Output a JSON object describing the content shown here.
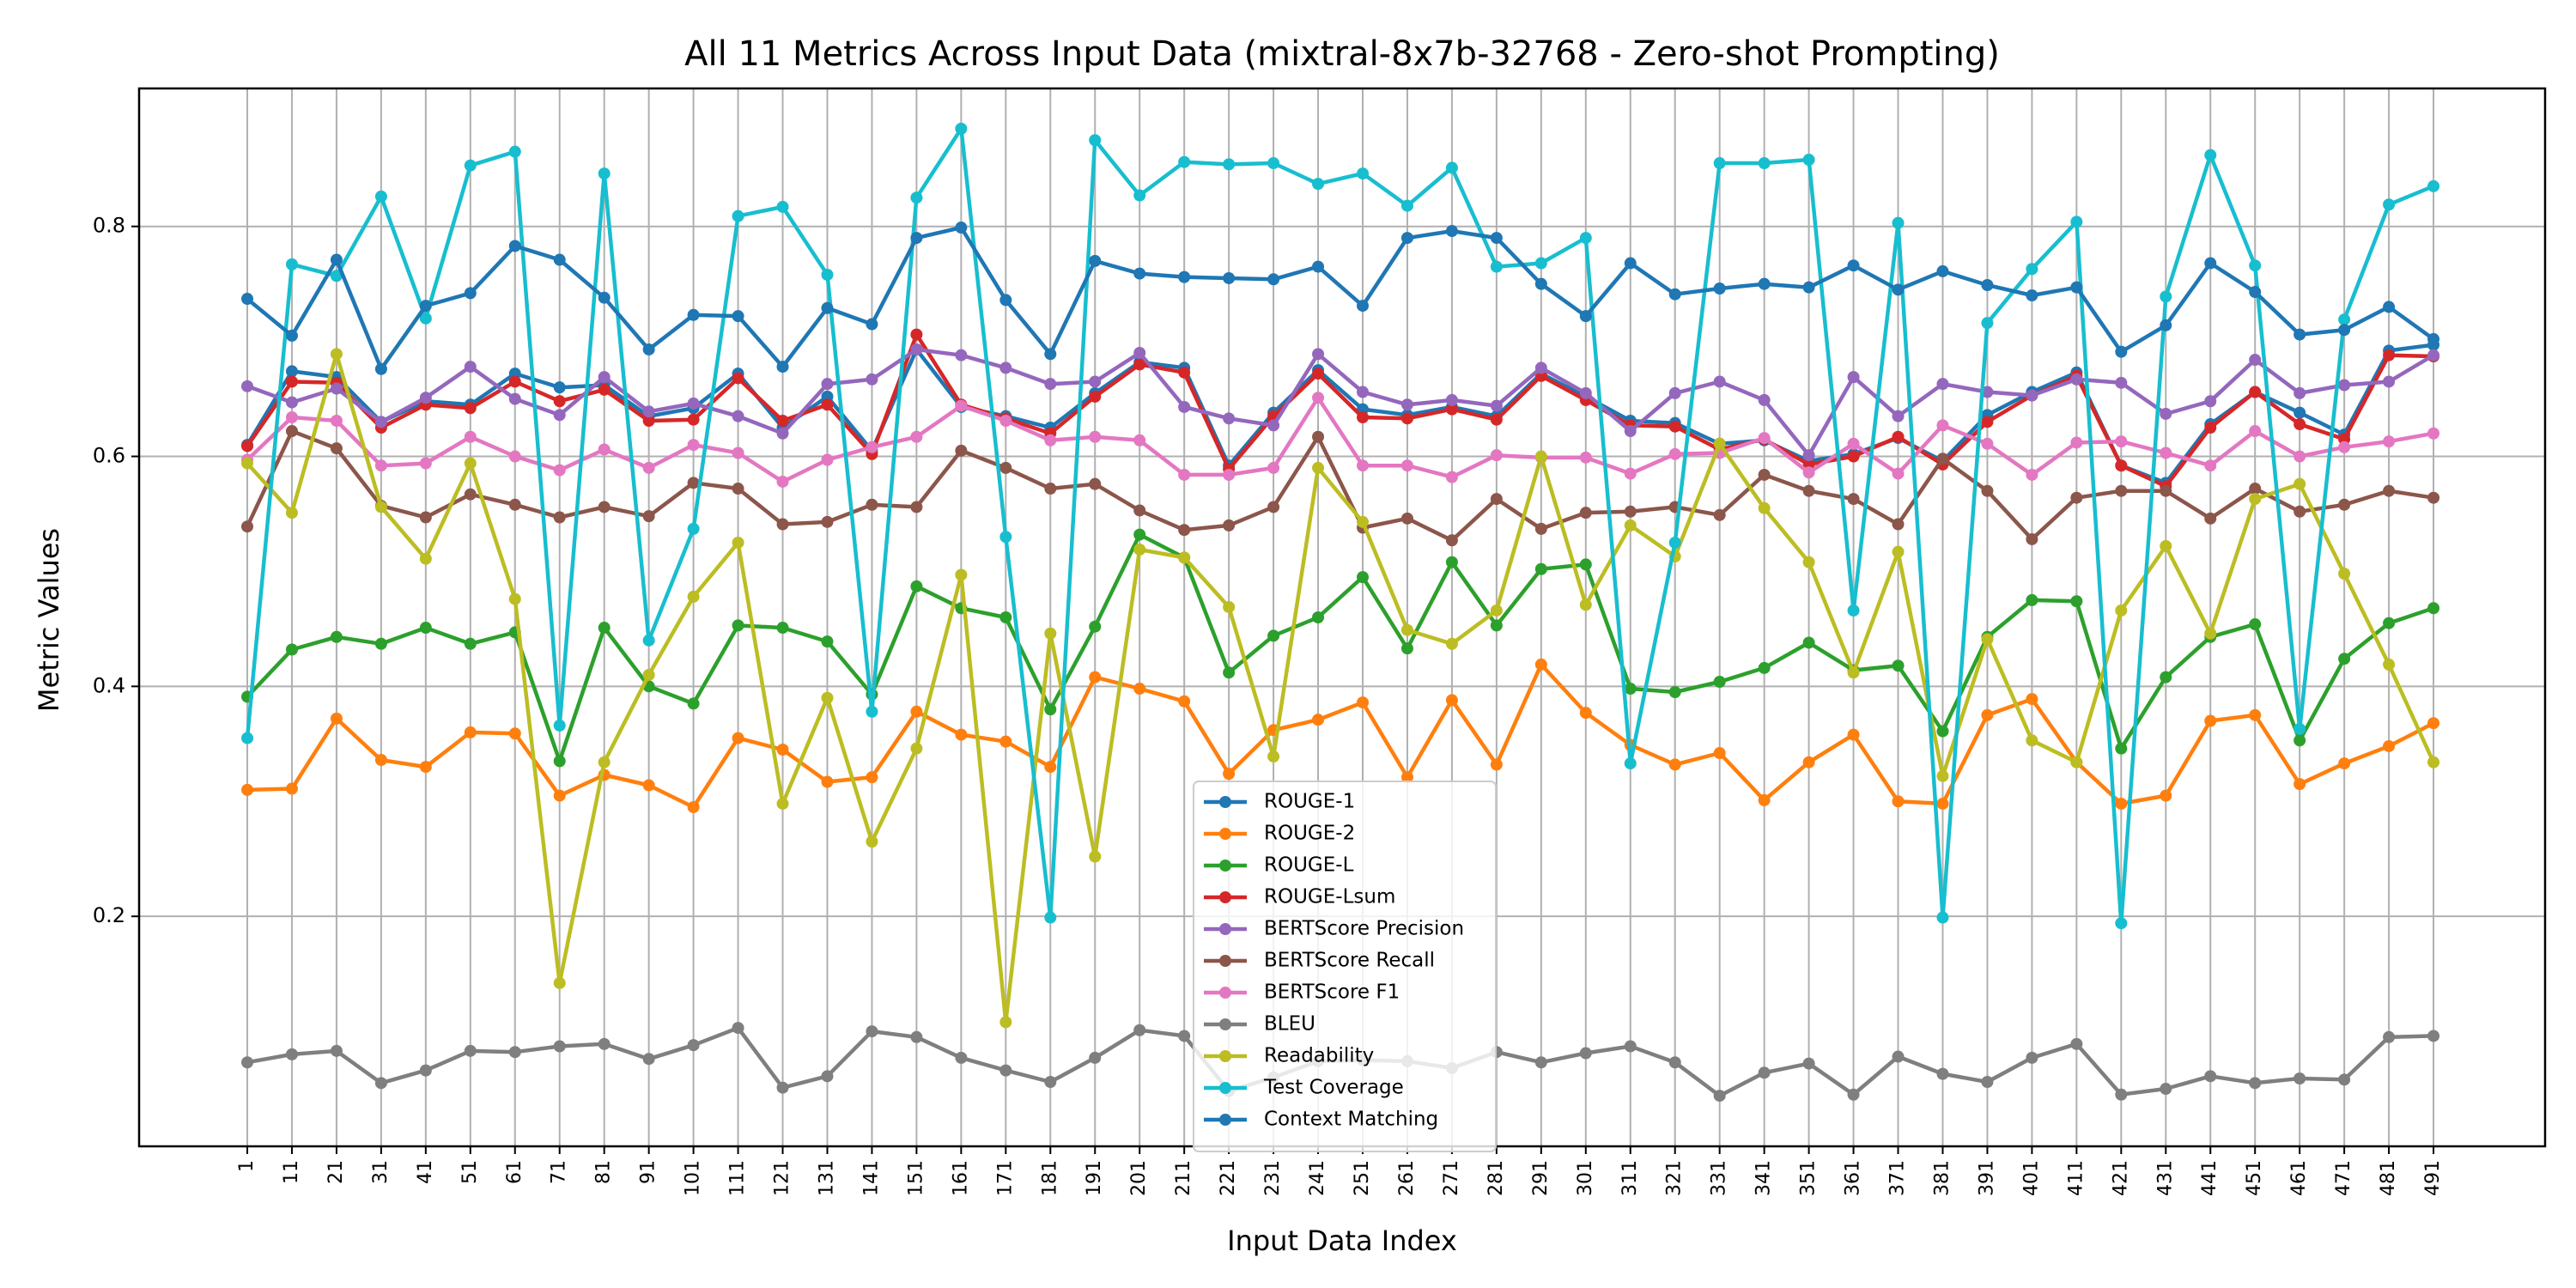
{
  "chart_data": {
    "type": "line",
    "title": "All 11 Metrics Across Input Data (mixtral-8x7b-32768 - Zero-shot Prompting)",
    "xlabel": "Input Data Index",
    "ylabel": "Metric Values",
    "ylim": [
      0.0,
      0.92
    ],
    "yticks": [
      0.2,
      0.4,
      0.6,
      0.8
    ],
    "grid": true,
    "legend_position": "bottom-center",
    "x": [
      1,
      11,
      21,
      31,
      41,
      51,
      61,
      71,
      81,
      91,
      101,
      111,
      121,
      131,
      141,
      151,
      161,
      171,
      181,
      191,
      201,
      211,
      221,
      231,
      241,
      251,
      261,
      271,
      281,
      291,
      301,
      311,
      321,
      331,
      341,
      351,
      361,
      371,
      381,
      391,
      401,
      411,
      421,
      431,
      441,
      451,
      461,
      471,
      481,
      491
    ],
    "series": [
      {
        "name": "ROUGE-1",
        "color": "#1f77b4",
        "values": [
          0.61,
          0.674,
          0.669,
          0.63,
          0.648,
          0.645,
          0.672,
          0.66,
          0.662,
          0.635,
          0.642,
          0.672,
          0.625,
          0.652,
          0.605,
          0.693,
          0.643,
          0.635,
          0.625,
          0.655,
          0.682,
          0.677,
          0.592,
          0.638,
          0.675,
          0.641,
          0.636,
          0.643,
          0.635,
          0.672,
          0.652,
          0.631,
          0.629,
          0.611,
          0.614,
          0.596,
          0.602,
          0.616,
          0.596,
          0.636,
          0.656,
          0.673,
          0.592,
          0.577,
          0.628,
          0.656,
          0.638,
          0.619,
          0.692,
          0.697
        ]
      },
      {
        "name": "ROUGE-2",
        "color": "#ff7f0e",
        "values": [
          0.31,
          0.311,
          0.372,
          0.336,
          0.33,
          0.36,
          0.359,
          0.305,
          0.323,
          0.314,
          0.295,
          0.355,
          0.345,
          0.317,
          0.321,
          0.378,
          0.358,
          0.352,
          0.33,
          0.408,
          0.398,
          0.387,
          0.324,
          0.362,
          0.371,
          0.386,
          0.321,
          0.388,
          0.332,
          0.419,
          0.377,
          0.349,
          0.332,
          0.342,
          0.301,
          0.334,
          0.358,
          0.3,
          0.298,
          0.375,
          0.389,
          0.334,
          0.298,
          0.305,
          0.37,
          0.375,
          0.315,
          0.333,
          0.348,
          0.368
        ]
      },
      {
        "name": "ROUGE-L",
        "color": "#2ca02c",
        "values": [
          0.391,
          0.432,
          0.443,
          0.437,
          0.451,
          0.437,
          0.447,
          0.335,
          0.451,
          0.4,
          0.385,
          0.453,
          0.451,
          0.439,
          0.393,
          0.487,
          0.468,
          0.46,
          0.38,
          0.452,
          0.532,
          0.512,
          0.412,
          0.444,
          0.46,
          0.495,
          0.433,
          0.508,
          0.453,
          0.502,
          0.506,
          0.398,
          0.395,
          0.404,
          0.416,
          0.438,
          0.414,
          0.418,
          0.361,
          0.443,
          0.475,
          0.474,
          0.346,
          0.408,
          0.443,
          0.454,
          0.353,
          0.424,
          0.455,
          0.468
        ]
      },
      {
        "name": "ROUGE-Lsum",
        "color": "#d62728",
        "values": [
          0.609,
          0.665,
          0.664,
          0.625,
          0.645,
          0.642,
          0.665,
          0.648,
          0.658,
          0.631,
          0.632,
          0.668,
          0.631,
          0.645,
          0.602,
          0.706,
          0.645,
          0.633,
          0.62,
          0.652,
          0.68,
          0.673,
          0.589,
          0.635,
          0.672,
          0.634,
          0.633,
          0.641,
          0.632,
          0.67,
          0.649,
          0.627,
          0.626,
          0.606,
          0.615,
          0.593,
          0.6,
          0.617,
          0.593,
          0.63,
          0.653,
          0.67,
          0.592,
          0.574,
          0.625,
          0.656,
          0.628,
          0.615,
          0.688,
          0.687
        ]
      },
      {
        "name": "BERTScore Precision",
        "color": "#9467bd",
        "values": [
          0.661,
          0.647,
          0.659,
          0.63,
          0.651,
          0.678,
          0.65,
          0.636,
          0.669,
          0.639,
          0.646,
          0.635,
          0.62,
          0.663,
          0.667,
          0.693,
          0.688,
          0.677,
          0.663,
          0.665,
          0.69,
          0.643,
          0.633,
          0.627,
          0.689,
          0.656,
          0.645,
          0.649,
          0.644,
          0.677,
          0.655,
          0.622,
          0.655,
          0.665,
          0.649,
          0.601,
          0.669,
          0.635,
          0.663,
          0.656,
          0.653,
          0.667,
          0.664,
          0.637,
          0.648,
          0.684,
          0.655,
          0.662,
          0.665,
          0.688
        ]
      },
      {
        "name": "BERTScore Recall",
        "color": "#8c564b",
        "values": [
          0.539,
          0.622,
          0.607,
          0.557,
          0.547,
          0.567,
          0.558,
          0.547,
          0.556,
          0.548,
          0.577,
          0.572,
          0.541,
          0.543,
          0.558,
          0.556,
          0.605,
          0.59,
          0.572,
          0.576,
          0.553,
          0.536,
          0.54,
          0.556,
          0.617,
          0.538,
          0.546,
          0.527,
          0.563,
          0.537,
          0.551,
          0.552,
          0.556,
          0.549,
          0.584,
          0.57,
          0.563,
          0.541,
          0.598,
          0.57,
          0.528,
          0.564,
          0.57,
          0.57,
          0.546,
          0.572,
          0.552,
          0.558,
          0.57,
          0.564
        ]
      },
      {
        "name": "BERTScore F1",
        "color": "#e377c2",
        "values": [
          0.597,
          0.634,
          0.631,
          0.592,
          0.594,
          0.617,
          0.6,
          0.588,
          0.606,
          0.59,
          0.61,
          0.603,
          0.578,
          0.597,
          0.608,
          0.617,
          0.644,
          0.631,
          0.614,
          0.617,
          0.614,
          0.584,
          0.584,
          0.59,
          0.651,
          0.592,
          0.592,
          0.582,
          0.601,
          0.599,
          0.599,
          0.585,
          0.602,
          0.603,
          0.616,
          0.586,
          0.611,
          0.585,
          0.627,
          0.611,
          0.584,
          0.612,
          0.613,
          0.603,
          0.592,
          0.622,
          0.6,
          0.608,
          0.613,
          0.62
        ]
      },
      {
        "name": "BLEU",
        "color": "#7f7f7f",
        "values": [
          0.073,
          0.08,
          0.083,
          0.055,
          0.066,
          0.083,
          0.082,
          0.087,
          0.089,
          0.076,
          0.088,
          0.103,
          0.051,
          0.061,
          0.1,
          0.095,
          0.077,
          0.066,
          0.056,
          0.077,
          0.101,
          0.096,
          0.048,
          0.06,
          0.074,
          0.075,
          0.074,
          0.068,
          0.082,
          0.073,
          0.081,
          0.087,
          0.073,
          0.044,
          0.064,
          0.072,
          0.045,
          0.078,
          0.063,
          0.056,
          0.077,
          0.089,
          0.045,
          0.05,
          0.061,
          0.055,
          0.059,
          0.058,
          0.095,
          0.096
        ]
      },
      {
        "name": "Readability",
        "color": "#bcbd22",
        "values": [
          0.594,
          0.551,
          0.689,
          0.556,
          0.511,
          0.594,
          0.476,
          0.142,
          0.334,
          0.41,
          0.478,
          0.525,
          0.298,
          0.39,
          0.265,
          0.346,
          0.497,
          0.108,
          0.446,
          0.252,
          0.519,
          0.512,
          0.469,
          0.339,
          0.59,
          0.543,
          0.449,
          0.437,
          0.466,
          0.6,
          0.471,
          0.54,
          0.513,
          0.611,
          0.555,
          0.508,
          0.412,
          0.517,
          0.322,
          0.441,
          0.353,
          0.334,
          0.466,
          0.522,
          0.446,
          0.563,
          0.576,
          0.498,
          0.419,
          0.334
        ]
      },
      {
        "name": "Test Coverage",
        "color": "#17becf",
        "values": [
          0.355,
          0.767,
          0.757,
          0.826,
          0.72,
          0.853,
          0.865,
          0.366,
          0.846,
          0.44,
          0.537,
          0.809,
          0.817,
          0.758,
          0.378,
          0.825,
          0.885,
          0.53,
          0.199,
          0.875,
          0.827,
          0.856,
          0.854,
          0.855,
          0.837,
          0.846,
          0.818,
          0.851,
          0.765,
          0.768,
          0.79,
          0.333,
          0.525,
          0.855,
          0.855,
          0.858,
          0.466,
          0.803,
          0.199,
          0.716,
          0.763,
          0.804,
          0.194,
          0.739,
          0.862,
          0.766,
          0.363,
          0.719,
          0.819,
          0.835
        ]
      },
      {
        "name": "Context Matching",
        "color": "#1f77b4",
        "values": [
          0.737,
          0.705,
          0.771,
          0.676,
          0.731,
          0.742,
          0.783,
          0.771,
          0.738,
          0.693,
          0.723,
          0.722,
          0.678,
          0.729,
          0.715,
          0.79,
          0.799,
          0.736,
          0.689,
          0.77,
          0.759,
          0.756,
          0.755,
          0.754,
          0.765,
          0.731,
          0.79,
          0.796,
          0.79,
          0.75,
          0.722,
          0.768,
          0.741,
          0.746,
          0.75,
          0.747,
          0.766,
          0.745,
          0.761,
          0.749,
          0.74,
          0.747,
          0.691,
          0.714,
          0.768,
          0.743,
          0.706,
          0.71,
          0.73,
          0.702
        ]
      }
    ]
  }
}
